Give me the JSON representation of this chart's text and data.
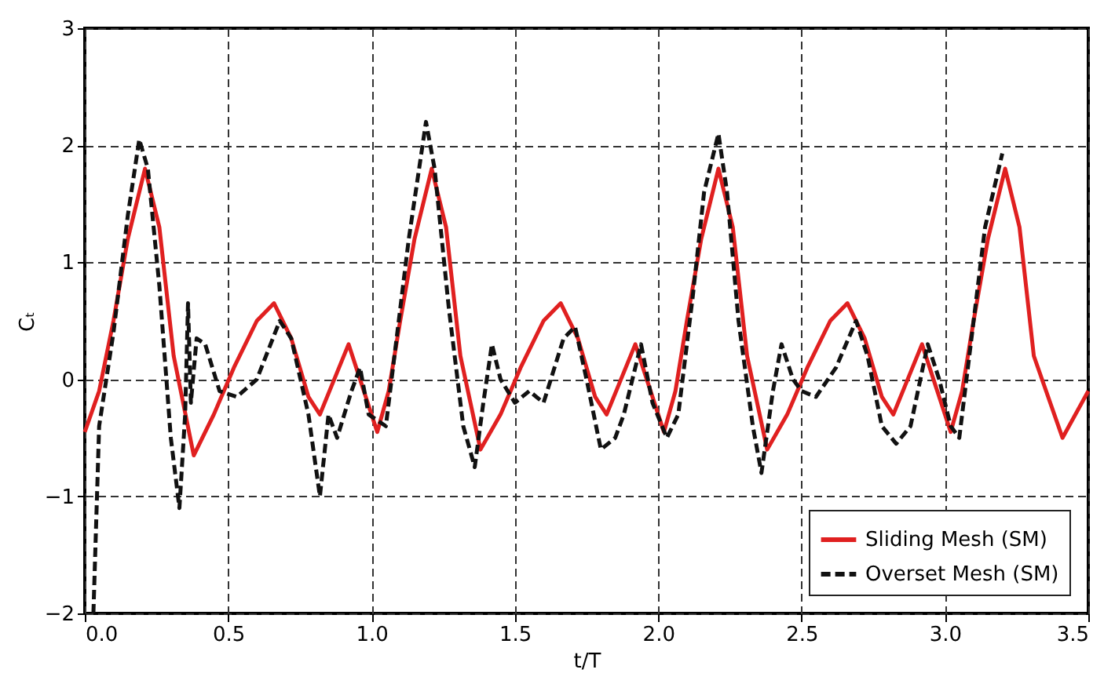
{
  "chart_data": {
    "type": "line",
    "xlabel": "t/T",
    "ylabel": "Cₜ",
    "xlim": [
      0.0,
      3.5
    ],
    "xticks": [
      {
        "value": 0,
        "label": "0.0"
      },
      0.5,
      {
        "value": 1,
        "label": "1.0"
      },
      1.5,
      {
        "value": 2,
        "label": "2.0"
      },
      2.5,
      {
        "value": 3,
        "label": "3.0"
      },
      3.5
    ],
    "ylim": [
      -2,
      3
    ],
    "yticks": [
      -2,
      -1,
      0,
      1,
      2,
      3
    ],
    "grid": true,
    "legend": "bottom right",
    "marker": "none",
    "series": [
      {
        "name": "Sliding Mesh (SM)",
        "color": "#e02020",
        "line_style": "solid",
        "x": [
          0.0,
          0.05,
          0.1,
          0.15,
          0.21,
          0.26,
          0.31,
          0.38,
          0.45,
          0.52,
          0.6,
          0.66,
          0.72,
          0.78,
          0.82,
          0.87,
          0.92,
          0.96,
          1.02,
          1.06,
          1.1,
          1.15,
          1.21,
          1.26,
          1.31,
          1.38,
          1.45,
          1.52,
          1.6,
          1.66,
          1.72,
          1.78,
          1.82,
          1.87,
          1.92,
          1.96,
          2.02,
          2.06,
          2.1,
          2.15,
          2.21,
          2.26,
          2.31,
          2.38,
          2.45,
          2.52,
          2.6,
          2.66,
          2.72,
          2.78,
          2.82,
          2.87,
          2.92,
          2.96,
          3.02,
          3.06,
          3.1,
          3.15,
          3.21,
          3.26,
          3.31,
          3.41,
          3.5
        ],
        "values": [
          -0.45,
          -0.1,
          0.5,
          1.2,
          1.8,
          1.3,
          0.2,
          -0.65,
          -0.3,
          0.1,
          0.5,
          0.65,
          0.35,
          -0.15,
          -0.3,
          0.0,
          0.3,
          0.0,
          -0.45,
          -0.1,
          0.5,
          1.2,
          1.8,
          1.3,
          0.2,
          -0.6,
          -0.3,
          0.1,
          0.5,
          0.65,
          0.35,
          -0.15,
          -0.3,
          0.0,
          0.3,
          0.0,
          -0.45,
          -0.1,
          0.5,
          1.2,
          1.8,
          1.3,
          0.2,
          -0.6,
          -0.3,
          0.1,
          0.5,
          0.65,
          0.35,
          -0.15,
          -0.3,
          0.0,
          0.3,
          0.0,
          -0.45,
          -0.1,
          0.5,
          1.2,
          1.8,
          1.3,
          0.2,
          -0.5,
          -0.1
        ]
      },
      {
        "name": "Overset Mesh (SM)",
        "color": "#111111",
        "line_style": "dashed",
        "x": [
          0.03,
          0.05,
          0.1,
          0.15,
          0.19,
          0.22,
          0.26,
          0.3,
          0.33,
          0.35,
          0.36,
          0.37,
          0.39,
          0.42,
          0.47,
          0.53,
          0.6,
          0.68,
          0.72,
          0.78,
          0.82,
          0.85,
          0.88,
          0.93,
          0.96,
          0.99,
          1.05,
          1.08,
          1.13,
          1.19,
          1.22,
          1.27,
          1.32,
          1.36,
          1.39,
          1.42,
          1.45,
          1.5,
          1.55,
          1.6,
          1.67,
          1.71,
          1.75,
          1.8,
          1.85,
          1.88,
          1.94,
          1.98,
          2.03,
          2.07,
          2.12,
          2.16,
          2.21,
          2.24,
          2.28,
          2.33,
          2.36,
          2.4,
          2.43,
          2.47,
          2.5,
          2.55,
          2.62,
          2.69,
          2.73,
          2.78,
          2.83,
          2.88,
          2.94,
          2.98,
          3.02,
          3.05,
          3.1,
          3.14,
          3.2
        ],
        "values": [
          -2.0,
          -0.4,
          0.4,
          1.4,
          2.05,
          1.8,
          0.8,
          -0.5,
          -1.1,
          -0.3,
          0.65,
          -0.2,
          0.35,
          0.3,
          -0.1,
          -0.15,
          0.0,
          0.5,
          0.35,
          -0.3,
          -1.0,
          -0.3,
          -0.5,
          -0.1,
          0.1,
          -0.3,
          -0.4,
          0.2,
          1.2,
          2.2,
          1.8,
          0.6,
          -0.4,
          -0.75,
          -0.2,
          0.3,
          0.0,
          -0.2,
          -0.1,
          -0.2,
          0.35,
          0.45,
          0.0,
          -0.6,
          -0.5,
          -0.3,
          0.3,
          -0.2,
          -0.5,
          -0.3,
          0.7,
          1.6,
          2.1,
          1.6,
          0.5,
          -0.4,
          -0.8,
          -0.1,
          0.3,
          0.0,
          -0.1,
          -0.15,
          0.1,
          0.5,
          0.2,
          -0.4,
          -0.55,
          -0.4,
          0.3,
          0.0,
          -0.4,
          -0.5,
          0.5,
          1.3,
          1.93
        ]
      }
    ]
  }
}
